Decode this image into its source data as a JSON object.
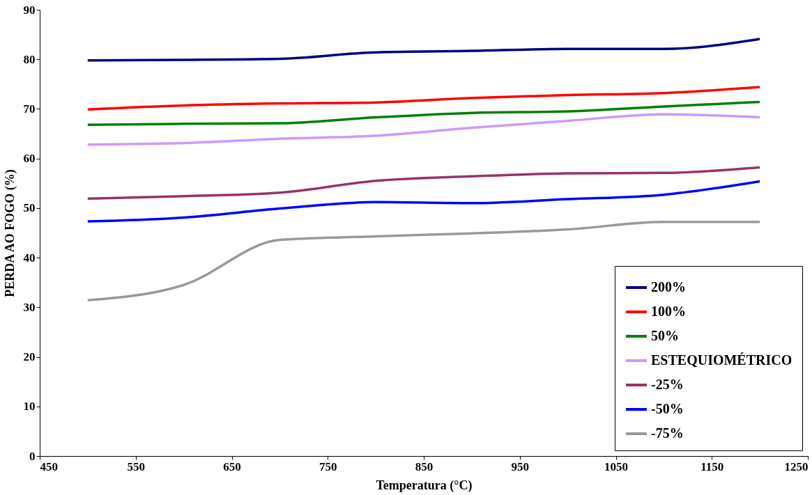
{
  "chart_data": {
    "type": "line",
    "xlabel": "Temperatura (°C)",
    "ylabel": "PERDA AO FOGO (%)",
    "x": [
      500,
      600,
      700,
      800,
      900,
      1000,
      1100,
      1200
    ],
    "xlim": [
      450,
      1250
    ],
    "xticks": [
      450,
      550,
      650,
      750,
      850,
      950,
      1050,
      1150,
      1250
    ],
    "ylim": [
      0,
      90
    ],
    "yticks": [
      0,
      10,
      20,
      30,
      40,
      50,
      60,
      70,
      80,
      90
    ],
    "grid": false,
    "legend": "bottom right",
    "marker": "none",
    "line_style": "solid",
    "series": [
      {
        "name": "200%",
        "color": "#000080",
        "values": [
          79.8,
          79.9,
          80.1,
          81.4,
          81.7,
          82.1,
          82.1,
          84.1
        ]
      },
      {
        "name": "100%",
        "color": "#ff0000",
        "values": [
          69.9,
          70.7,
          71.1,
          71.3,
          72.2,
          72.8,
          73.2,
          74.4
        ]
      },
      {
        "name": "50%",
        "color": "#008000",
        "values": [
          66.8,
          67.0,
          67.1,
          68.3,
          69.2,
          69.5,
          70.5,
          71.4
        ]
      },
      {
        "name": "ESTEQUIOMÉTRICO",
        "color": "#cc99ff",
        "values": [
          62.8,
          63.1,
          64.0,
          64.6,
          66.2,
          67.6,
          68.9,
          68.3
        ]
      },
      {
        "name": "-25%",
        "color": "#993366",
        "values": [
          51.9,
          52.4,
          53.1,
          55.5,
          56.4,
          57.0,
          57.1,
          58.2
        ]
      },
      {
        "name": "-50%",
        "color": "#0000ff",
        "values": [
          47.3,
          48.1,
          49.9,
          51.2,
          51.0,
          51.8,
          52.7,
          55.4
        ]
      },
      {
        "name": "-75%",
        "color": "#999999",
        "values": [
          31.4,
          34.5,
          43.6,
          44.3,
          44.9,
          45.7,
          47.2,
          47.2
        ]
      }
    ]
  }
}
